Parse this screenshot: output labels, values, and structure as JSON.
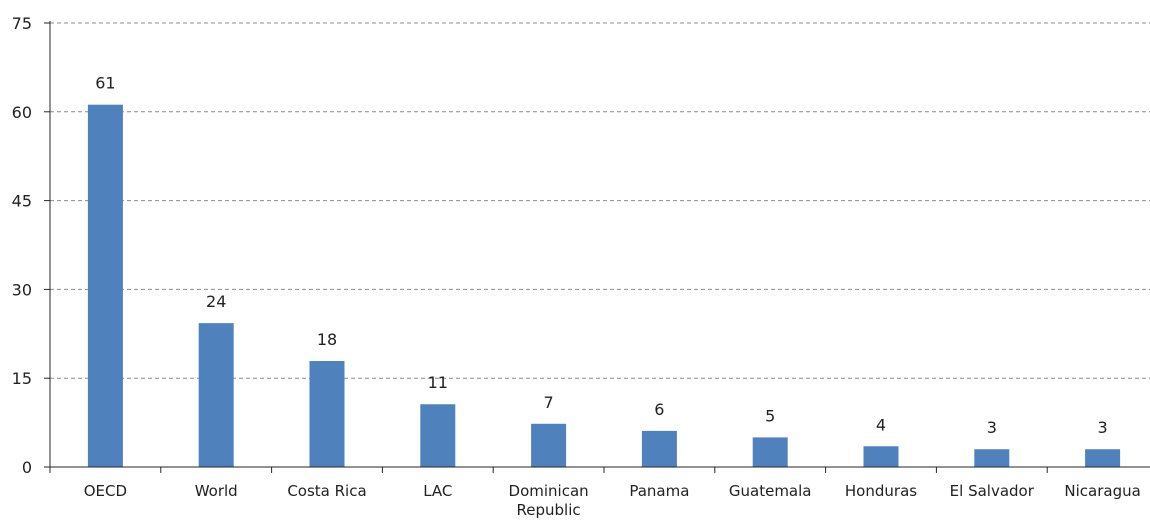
{
  "chart_data": {
    "type": "bar",
    "categories": [
      "OECD",
      "World",
      "Costa Rica",
      "LAC",
      "Dominican Republic",
      "Panama",
      "Guatemala",
      "Honduras",
      "El Salvador",
      "Nicaragua"
    ],
    "category_label_lines": [
      [
        "OECD"
      ],
      [
        "World"
      ],
      [
        "Costa Rica"
      ],
      [
        "LAC"
      ],
      [
        "Dominican",
        "Republic"
      ],
      [
        "Panama"
      ],
      [
        "Guatemala"
      ],
      [
        "Honduras"
      ],
      [
        "El Salvador"
      ],
      [
        "Nicaragua"
      ]
    ],
    "values": [
      61.2,
      24.3,
      17.9,
      10.6,
      7.3,
      6.1,
      5.0,
      3.5,
      3.0,
      3.0
    ],
    "data_labels": [
      "61",
      "24",
      "18",
      "11",
      "7",
      "6",
      "5",
      "4",
      "3",
      "3"
    ],
    "ylim": [
      0,
      75
    ],
    "yticks": [
      0,
      15,
      30,
      45,
      60,
      75
    ],
    "ytick_labels": [
      "0",
      "15",
      "30",
      "45",
      "60",
      "75"
    ],
    "grid": "horizontal dashed",
    "bar_color": "#4f81bd",
    "grid_color": "#8c8c8c",
    "axis_color": "#262626",
    "title": "",
    "xlabel": "",
    "ylabel": ""
  }
}
